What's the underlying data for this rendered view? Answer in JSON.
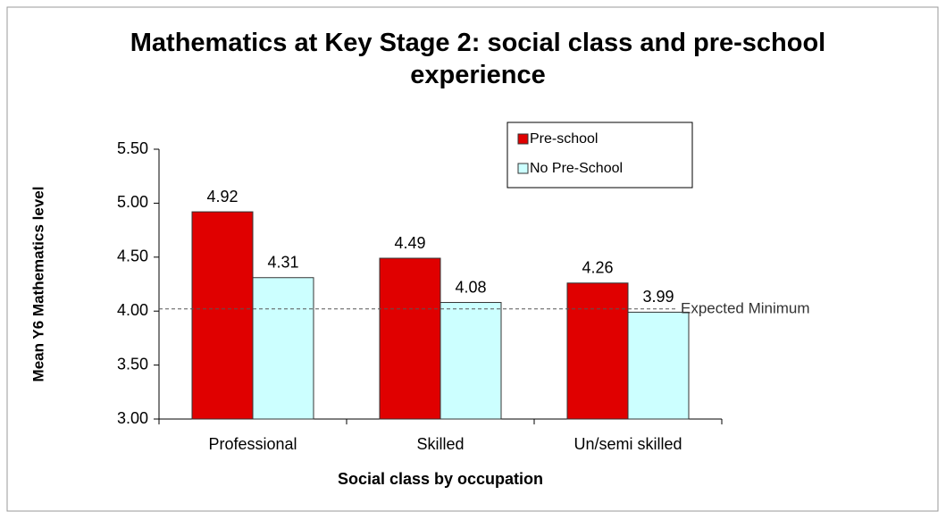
{
  "chart_data": {
    "type": "bar",
    "title": "Mathematics at Key Stage 2: social class and pre-school experience",
    "x_label": "Social class by occupation",
    "y_label": "Mean Y6 Mathematics level",
    "categories": [
      "Professional",
      "Skilled",
      "Un/semi skilled"
    ],
    "series": [
      {
        "name": "Pre-school",
        "color": "#e00000",
        "values": [
          4.92,
          4.49,
          4.26
        ]
      },
      {
        "name": "No Pre-School",
        "color": "#ccffff",
        "values": [
          4.31,
          4.08,
          3.99
        ]
      }
    ],
    "ylim": [
      3.0,
      5.5
    ],
    "yticks": [
      {
        "value": 3.0,
        "label": "3.00"
      },
      {
        "value": 3.5,
        "label": "3.50"
      },
      {
        "value": 4.0,
        "label": "4.00"
      },
      {
        "value": 4.5,
        "label": "4.50"
      },
      {
        "value": 5.0,
        "label": "5.00"
      },
      {
        "value": 5.5,
        "label": "5.50"
      }
    ],
    "reference_line": {
      "value": 4.02,
      "label": "Expected Minimum"
    },
    "legend": "upper right",
    "grid": false
  }
}
